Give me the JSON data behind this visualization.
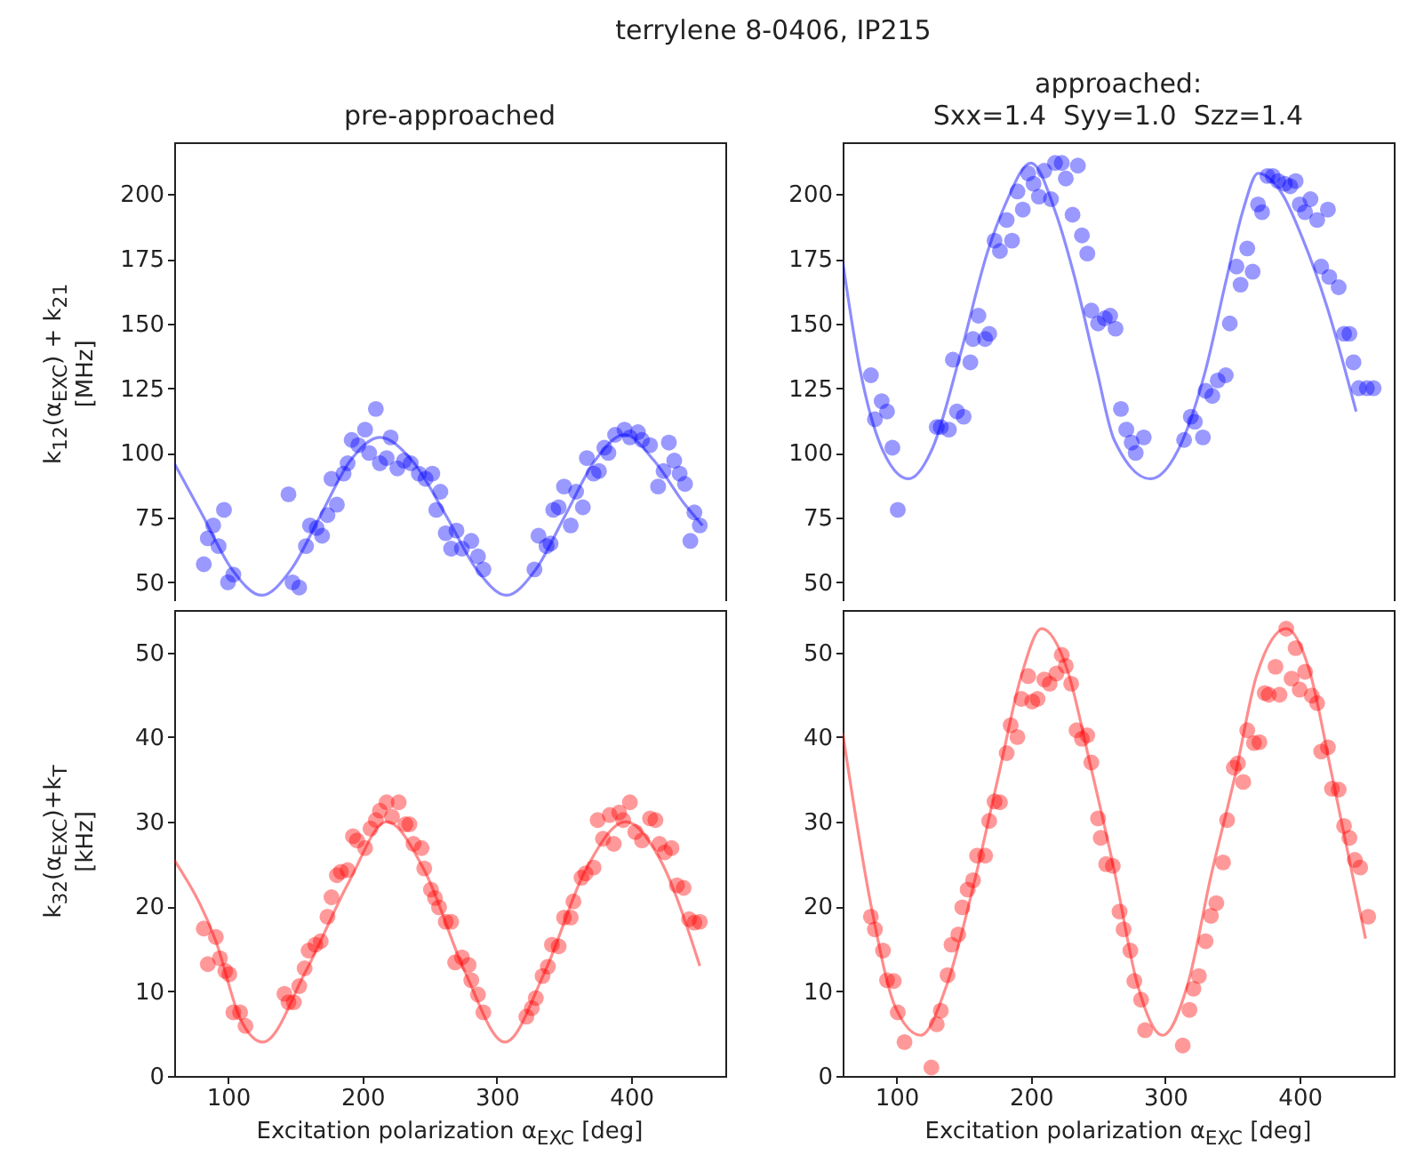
{
  "chart_data": [
    {
      "type": "scatter",
      "title": "pre-approached",
      "ylabel": "k$_{12}$(α$_{EXC}$) + k$_{21}$\n[MHz]",
      "annotations": [
        "terrylene 8-0406, IP215"
      ],
      "xlim": [
        60,
        470
      ],
      "xticks": [
        100,
        200,
        300,
        400
      ],
      "ylim": [
        40,
        220
      ],
      "yticks": [
        50,
        75,
        100,
        125,
        150,
        175,
        200
      ],
      "tick_labels": "y",
      "series": [
        {
          "type": "scatter",
          "marker": "circle",
          "color": "#0000ff",
          "x": [
            82,
            85,
            89,
            93,
            97,
            100,
            104,
            145,
            148,
            153,
            158,
            161,
            166,
            170,
            174,
            177,
            181,
            186,
            189,
            192,
            197,
            202,
            205,
            210,
            213,
            218,
            221,
            226,
            231,
            236,
            242,
            247,
            252,
            258,
            255,
            262,
            266,
            270,
            274,
            281,
            286,
            290,
            328,
            331,
            337,
            340,
            342,
            346,
            350,
            355,
            359,
            364,
            367,
            372,
            376,
            380,
            383,
            388,
            395,
            399,
            405,
            408,
            414,
            420,
            424,
            428,
            432,
            436,
            440,
            444,
            447,
            451
          ],
          "values": [
            57,
            67,
            72,
            64,
            78,
            50,
            53,
            84,
            50,
            48,
            64,
            72,
            71,
            68,
            76,
            90,
            80,
            92,
            96,
            105,
            103,
            109,
            100,
            117,
            96,
            98,
            106,
            94,
            97,
            96,
            92,
            90,
            92,
            85,
            78,
            69,
            63,
            70,
            63,
            66,
            60,
            55,
            55,
            68,
            64,
            65,
            78,
            79,
            87,
            72,
            85,
            79,
            98,
            92,
            93,
            102,
            100,
            107,
            109,
            106,
            108,
            105,
            103,
            87,
            93,
            104,
            97,
            92,
            88,
            66,
            77,
            72
          ]
        },
        {
          "type": "line",
          "color": "#0000ff",
          "x": [
            60,
            80,
            103,
            125,
            147,
            169,
            191,
            213,
            237,
            262,
            285,
            307,
            329,
            351,
            373,
            395,
            417,
            440,
            453
          ],
          "values": [
            96,
            77,
            55,
            45,
            55,
            76,
            97,
            106,
            97,
            76,
            55,
            45,
            55,
            76,
            97,
            107,
            97,
            80,
            72
          ]
        }
      ]
    },
    {
      "type": "scatter",
      "title": "approached:\nSxx=1.4  Syy=1.0  Szz=1.4",
      "xlim": [
        60,
        470
      ],
      "xticks": [
        100,
        200,
        300,
        400
      ],
      "ylim": [
        40,
        220
      ],
      "yticks": [
        50,
        75,
        100,
        125,
        150,
        175,
        200
      ],
      "tick_labels": "y",
      "series": [
        {
          "type": "scatter",
          "marker": "circle",
          "color": "#0000ff",
          "x": [
            81,
            84,
            89,
            93,
            97,
            101,
            130,
            133,
            139,
            142,
            145,
            150,
            155,
            157,
            161,
            166,
            169,
            173,
            177,
            182,
            186,
            190,
            194,
            198,
            202,
            206,
            210,
            215,
            218,
            223,
            226,
            235,
            231,
            238,
            242,
            245,
            250,
            255,
            259,
            263,
            267,
            271,
            275,
            278,
            284,
            314,
            319,
            322,
            328,
            330,
            335,
            339,
            345,
            348,
            353,
            356,
            361,
            365,
            369,
            372,
            376,
            380,
            384,
            389,
            393,
            397,
            400,
            404,
            408,
            413,
            421,
            416,
            422,
            429,
            433,
            437,
            440,
            444,
            450,
            455
          ],
          "values": [
            130,
            113,
            120,
            116,
            102,
            78,
            110,
            110,
            109,
            136,
            116,
            114,
            135,
            144,
            153,
            144,
            146,
            182,
            178,
            190,
            182,
            201,
            194,
            208,
            204,
            199,
            209,
            198,
            212,
            212,
            206,
            211,
            192,
            184,
            177,
            155,
            150,
            152,
            153,
            148,
            117,
            109,
            104,
            100,
            106,
            105,
            114,
            112,
            106,
            124,
            122,
            128,
            130,
            150,
            172,
            165,
            179,
            170,
            196,
            193,
            207,
            207,
            205,
            204,
            203,
            205,
            196,
            193,
            198,
            190,
            194,
            172,
            168,
            164,
            146,
            146,
            135,
            125,
            125,
            125
          ]
        },
        {
          "type": "line",
          "color": "#0000ff",
          "x": [
            60,
            73,
            89,
            109,
            127,
            147,
            168,
            181,
            200,
            219,
            232,
            249,
            262,
            289,
            313,
            330,
            345,
            358,
            369,
            387,
            402,
            420,
            442
          ],
          "values": [
            174,
            132,
            102,
            90,
            102,
            137,
            178,
            196,
            212,
            192,
            169,
            132,
            105,
            90,
            105,
            132,
            166,
            194,
            208,
            200,
            183,
            157,
            116
          ]
        }
      ]
    },
    {
      "type": "scatter",
      "ylabel": "k$_{32}$(α$_{EXC}$)+k$_{T}$\n[kHz]",
      "xlabel": "Excitation polarization α$_{EXC}$ [deg]",
      "xlim": [
        60,
        470
      ],
      "xticks": [
        100,
        200,
        300,
        400
      ],
      "ylim": [
        0,
        55
      ],
      "yticks": [
        0,
        10,
        20,
        30,
        40,
        50
      ],
      "series": [
        {
          "type": "scatter",
          "marker": "circle",
          "color": "#ff0000",
          "x": [
            82,
            85,
            91,
            94,
            98,
            101,
            104,
            109,
            113,
            142,
            145,
            149,
            153,
            157,
            160,
            165,
            169,
            174,
            177,
            181,
            184,
            189,
            193,
            196,
            202,
            206,
            210,
            213,
            218,
            222,
            227,
            232,
            235,
            238,
            244,
            246,
            251,
            254,
            257,
            262,
            266,
            269,
            274,
            279,
            281,
            286,
            290,
            322,
            326,
            329,
            334,
            338,
            341,
            346,
            350,
            355,
            357,
            363,
            366,
            372,
            375,
            379,
            384,
            387,
            391,
            394,
            399,
            403,
            408,
            414,
            418,
            421,
            425,
            430,
            434,
            439,
            443,
            447,
            451
          ],
          "values": [
            17.4,
            13.2,
            16.4,
            13.9,
            12.4,
            12.0,
            7.5,
            7.5,
            5.9,
            9.7,
            8.7,
            8.7,
            10.6,
            12.7,
            14.8,
            15.5,
            15.9,
            18.8,
            21.1,
            23.7,
            24.1,
            24.3,
            28.3,
            27.8,
            26.9,
            29.2,
            30.2,
            31.3,
            32.3,
            30.6,
            32.3,
            29.7,
            29.7,
            27.4,
            26.9,
            24.5,
            22.0,
            21.0,
            19.9,
            18.2,
            18.2,
            13.4,
            14.0,
            13.1,
            11.3,
            9.6,
            7.5,
            7.0,
            8.0,
            9.2,
            11.8,
            12.9,
            15.5,
            15.3,
            18.7,
            18.7,
            20.6,
            23.4,
            23.9,
            24.6,
            30.2,
            28.0,
            30.8,
            27.4,
            31.1,
            30.2,
            32.3,
            28.8,
            27.8,
            30.4,
            30.2,
            27.4,
            26.4,
            26.9,
            22.5,
            22.2,
            18.5,
            18.1,
            18.2
          ]
        },
        {
          "type": "line",
          "color": "#ff0000",
          "x": [
            60,
            91,
            109,
            126,
            158,
            190,
            218,
            246,
            276,
            306,
            336,
            366,
            396,
            421,
            451
          ],
          "values": [
            25.5,
            15.9,
            6.8,
            4.0,
            12.4,
            22.9,
            30.0,
            24.3,
            12.4,
            4.0,
            12.4,
            24.3,
            30.0,
            25.7,
            13.0
          ]
        }
      ]
    },
    {
      "type": "scatter",
      "xlabel": "Excitation polarization α$_{EXC}$ [deg]",
      "xlim": [
        60,
        470
      ],
      "xticks": [
        100,
        200,
        300,
        400
      ],
      "ylim": [
        0,
        55
      ],
      "yticks": [
        0,
        10,
        20,
        30,
        40,
        50
      ],
      "series": [
        {
          "type": "scatter",
          "marker": "circle",
          "color": "#ff0000",
          "x": [
            81,
            84,
            90,
            93,
            98,
            101,
            106,
            126,
            130,
            133,
            138,
            141,
            146,
            149,
            153,
            157,
            160,
            166,
            169,
            173,
            177,
            182,
            185,
            190,
            193,
            198,
            201,
            205,
            210,
            214,
            219,
            223,
            226,
            230,
            234,
            238,
            242,
            245,
            250,
            252,
            256,
            261,
            266,
            269,
            274,
            277,
            282,
            285,
            313,
            318,
            321,
            325,
            330,
            334,
            338,
            343,
            346,
            351,
            354,
            358,
            361,
            366,
            370,
            374,
            377,
            382,
            385,
            390,
            394,
            397,
            400,
            404,
            409,
            413,
            416,
            421,
            424,
            429,
            433,
            437,
            441,
            445,
            451
          ],
          "values": [
            18.8,
            17.3,
            14.8,
            11.3,
            11.2,
            7.5,
            4.0,
            1.0,
            6.1,
            7.7,
            11.9,
            15.5,
            16.7,
            19.9,
            22.0,
            23.1,
            26.0,
            26.0,
            30.1,
            32.4,
            32.3,
            38.1,
            41.4,
            40.0,
            44.5,
            47.2,
            44.2,
            44.5,
            46.8,
            46.3,
            47.5,
            49.7,
            48.4,
            46.3,
            40.8,
            39.8,
            40.2,
            37.0,
            30.4,
            28.1,
            25.0,
            24.8,
            19.4,
            17.3,
            14.8,
            11.2,
            9.0,
            5.4,
            3.6,
            7.8,
            10.3,
            11.8,
            15.9,
            18.9,
            20.4,
            25.2,
            30.2,
            36.4,
            36.9,
            34.7,
            40.8,
            39.3,
            39.4,
            45.2,
            45.0,
            48.3,
            45.0,
            52.8,
            46.9,
            50.5,
            45.6,
            47.7,
            44.9,
            44.0,
            38.3,
            38.8,
            33.9,
            33.8,
            29.5,
            28.1,
            25.5,
            24.6,
            18.8
          ]
        },
        {
          "type": "line",
          "color": "#ff0000",
          "x": [
            60,
            82,
            99,
            118,
            138,
            159,
            176,
            193,
            208,
            227,
            244,
            262,
            279,
            298,
            317,
            334,
            352,
            368,
            390,
            407,
            424,
            449
          ],
          "values": [
            40.5,
            19.4,
            8.2,
            4.8,
            11.0,
            23.6,
            35.5,
            47.3,
            52.8,
            48.0,
            36.9,
            24.3,
            11.0,
            4.8,
            11.0,
            23.6,
            35.5,
            47.3,
            52.8,
            48.0,
            35.5,
            16.2
          ]
        }
      ]
    }
  ]
}
